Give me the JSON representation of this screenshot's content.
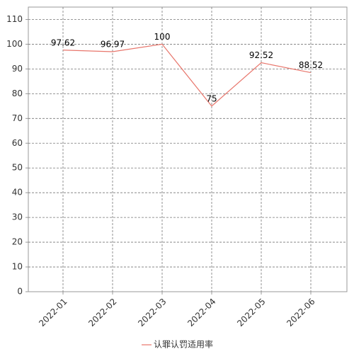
{
  "chart_data": {
    "type": "line",
    "categories": [
      "2022-01",
      "2022-02",
      "2022-03",
      "2022-04",
      "2022-05",
      "2022-06"
    ],
    "series": [
      {
        "name": "认罪认罚适用率",
        "color": "#e8766c",
        "values": [
          97.62,
          96.97,
          100,
          75,
          92.52,
          88.52
        ]
      }
    ],
    "ylim": [
      0,
      115
    ],
    "yticks": [
      0,
      10,
      20,
      30,
      40,
      50,
      60,
      70,
      80,
      90,
      100,
      110
    ],
    "grid": true,
    "data_labels": true,
    "legend": "bottom"
  }
}
